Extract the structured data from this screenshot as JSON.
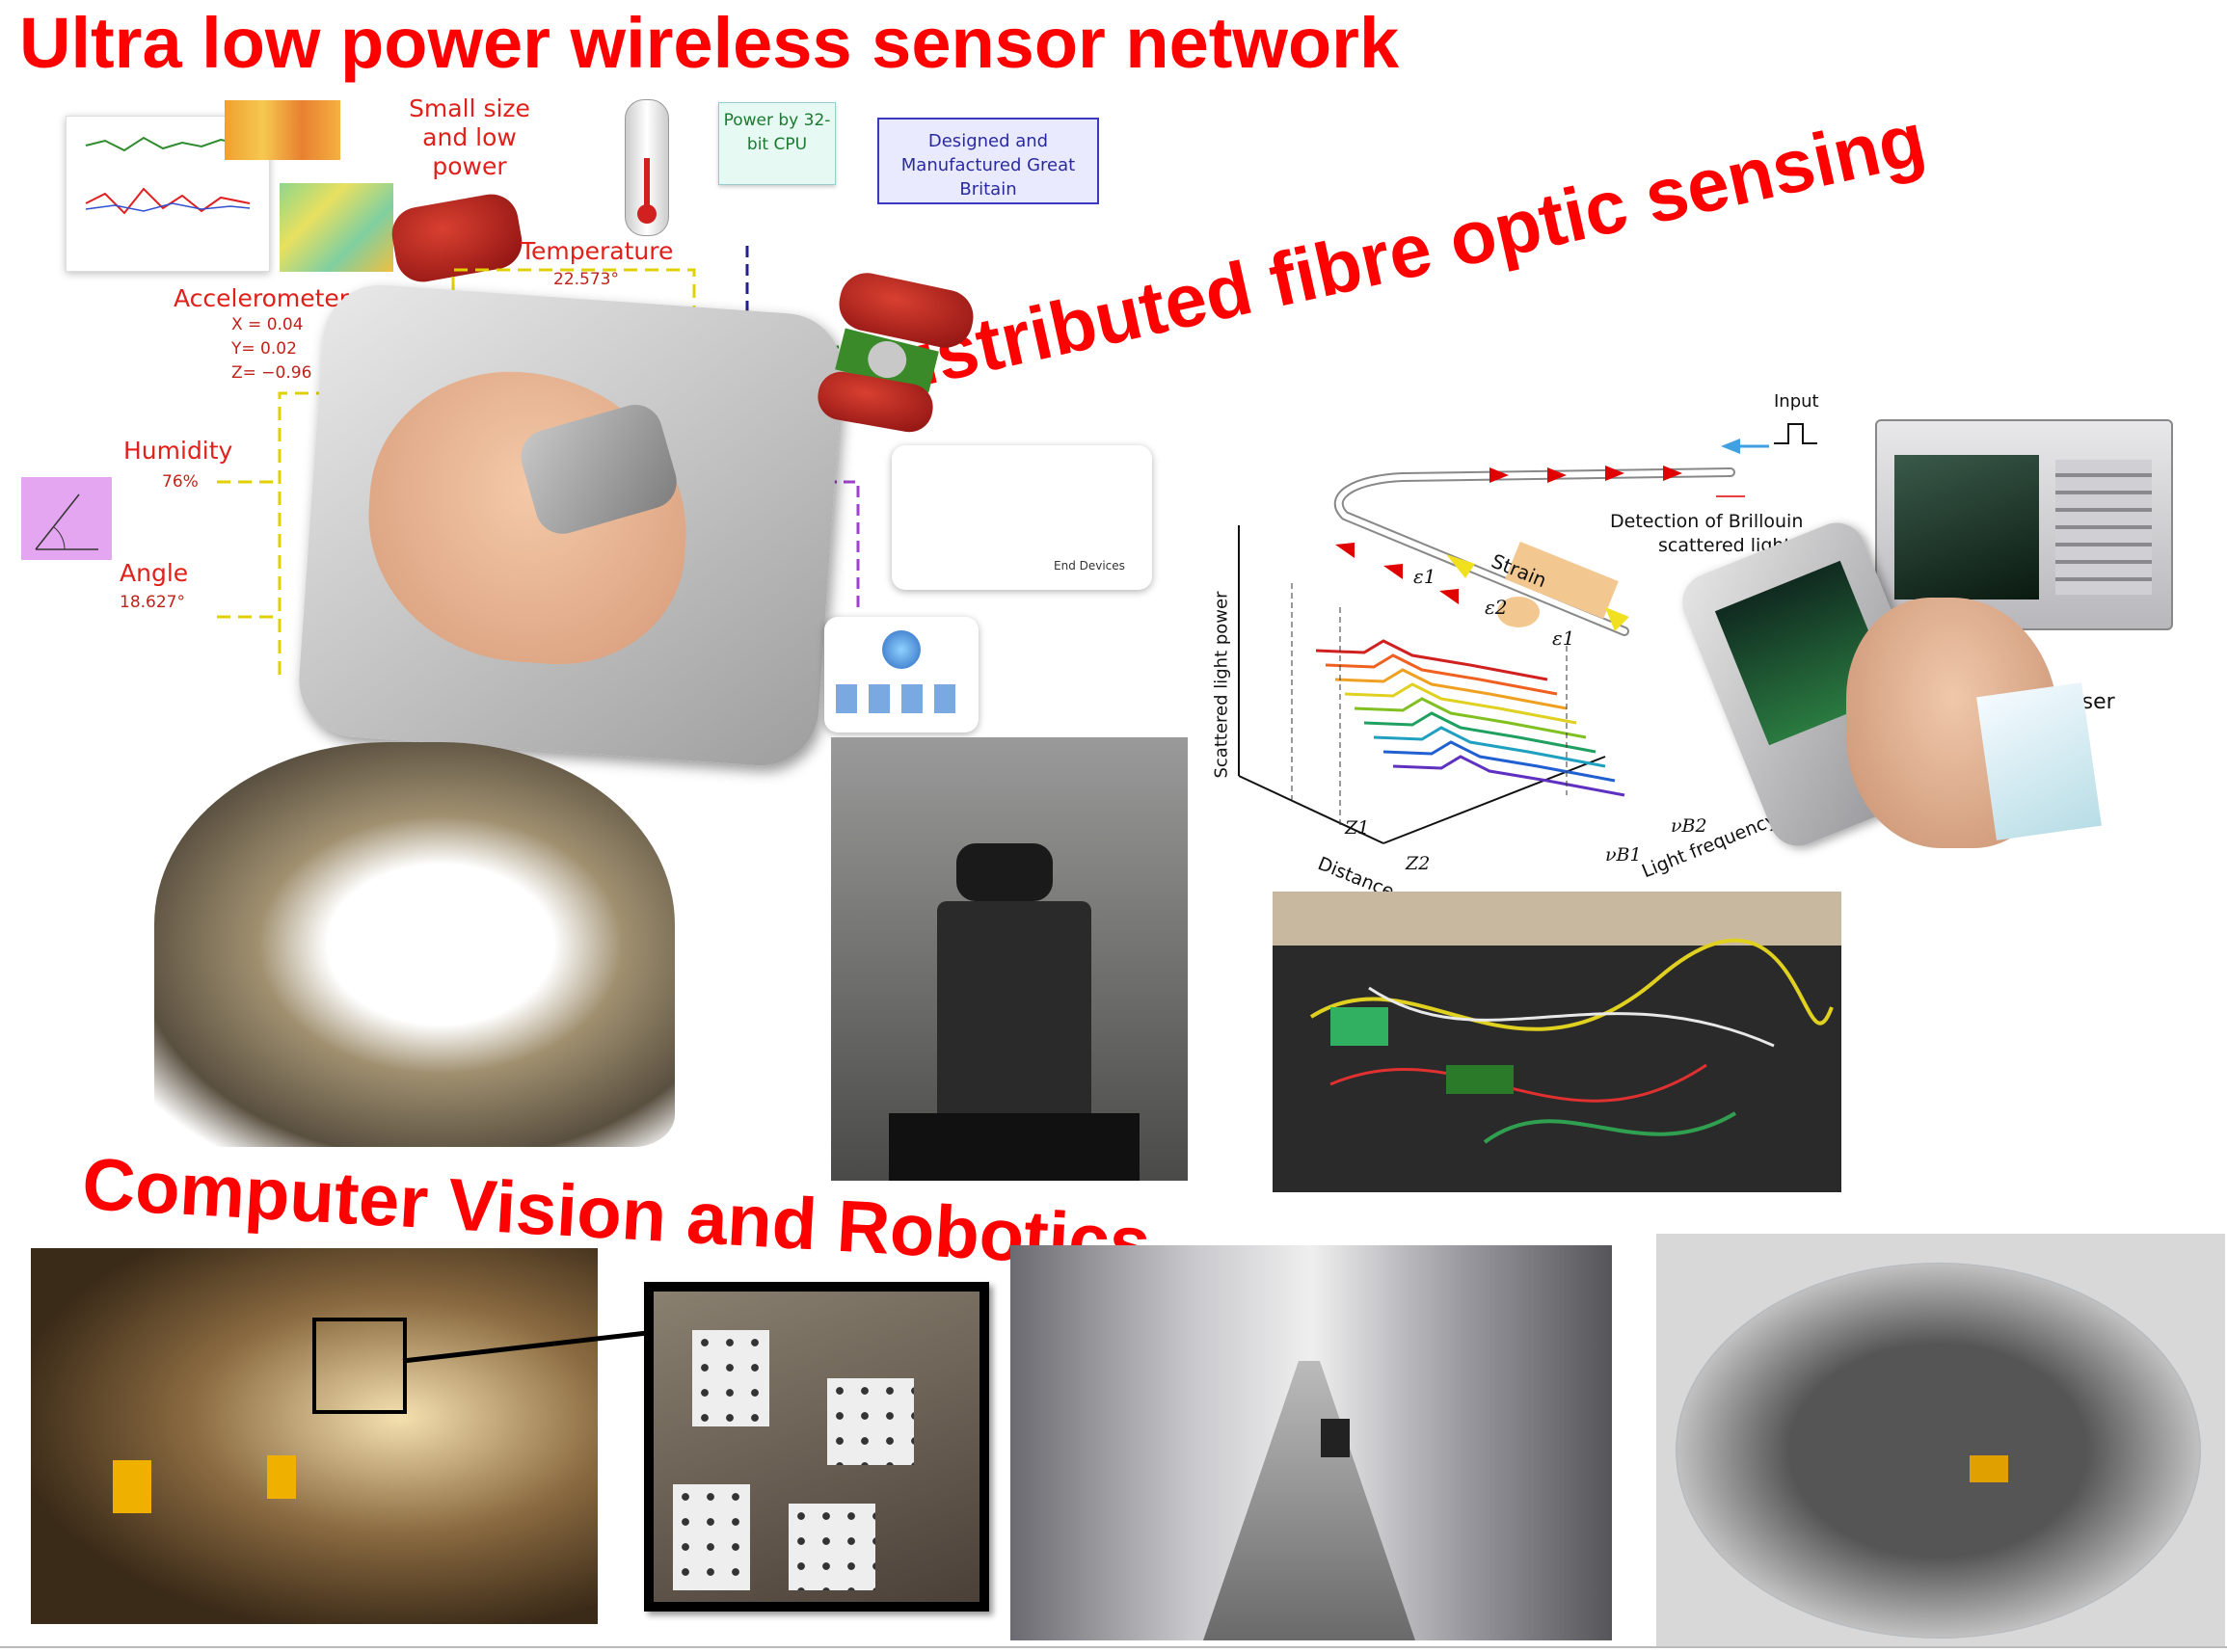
{
  "headings": {
    "wsn_title": "Ultra low power wireless sensor network",
    "fibre_title": "Distributed fibre optic sensing",
    "cv_title": "Computer Vision and Robotics"
  },
  "sensor_panel": {
    "small_size": "Small size and low power",
    "power_cpu": "Power by 32-bit CPU",
    "designed": "Designed and Manufactured Great Britain",
    "temperature_label": "Temperature",
    "temperature_value": "22.573°",
    "accel_label": "Accelerometer",
    "accel_x": "X = 0.04",
    "accel_y": "Y= 0.02",
    "accel_z": "Z= −0.96",
    "humidity_label": "Humidity",
    "humidity_value": "76%",
    "angle_label": "Angle",
    "angle_value": "18.627°",
    "end_devices": "End Devices"
  },
  "fibre_diagram": {
    "input": "Input",
    "detection_line1": "Detection of Brillouin",
    "detection_line2": "scattered light",
    "strain": "Strain",
    "eps1": "ε1",
    "eps2": "ε2",
    "eps1b": "ε1",
    "y_axis": "Scattered light power",
    "z1": "Z1",
    "z2": "Z2",
    "distance": "Distance",
    "vb1": "νB1",
    "vb2": "νB2",
    "freq": "Light frequency",
    "analyser": "Analyser"
  },
  "colors": {
    "heading_red": "#ff0000",
    "label_red": "#e0201a"
  }
}
